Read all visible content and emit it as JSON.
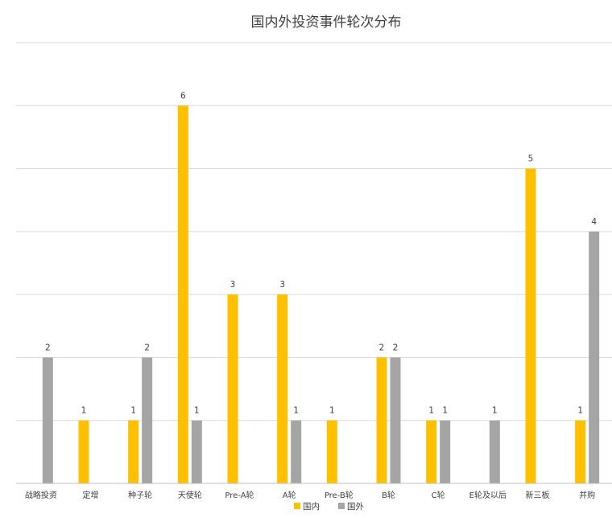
{
  "chart_data": {
    "type": "bar",
    "title": "国内外投资事件轮次分布",
    "categories": [
      "战略投资",
      "定增",
      "种子轮",
      "天使轮",
      "Pre-A轮",
      "A轮",
      "Pre-B轮",
      "B轮",
      "C轮",
      "E轮及以后",
      "新三板",
      "并购"
    ],
    "series": [
      {
        "name": "国内",
        "color": "#FFC000",
        "values": [
          null,
          1,
          1,
          6,
          3,
          3,
          1,
          2,
          1,
          null,
          5,
          1
        ]
      },
      {
        "name": "国外",
        "color": "#A5A5A5",
        "values": [
          2,
          null,
          2,
          1,
          null,
          1,
          null,
          2,
          1,
          1,
          null,
          4
        ]
      }
    ],
    "ylim": [
      0,
      7
    ],
    "grid": true,
    "data_labels": true,
    "legend_position": "bottom"
  }
}
